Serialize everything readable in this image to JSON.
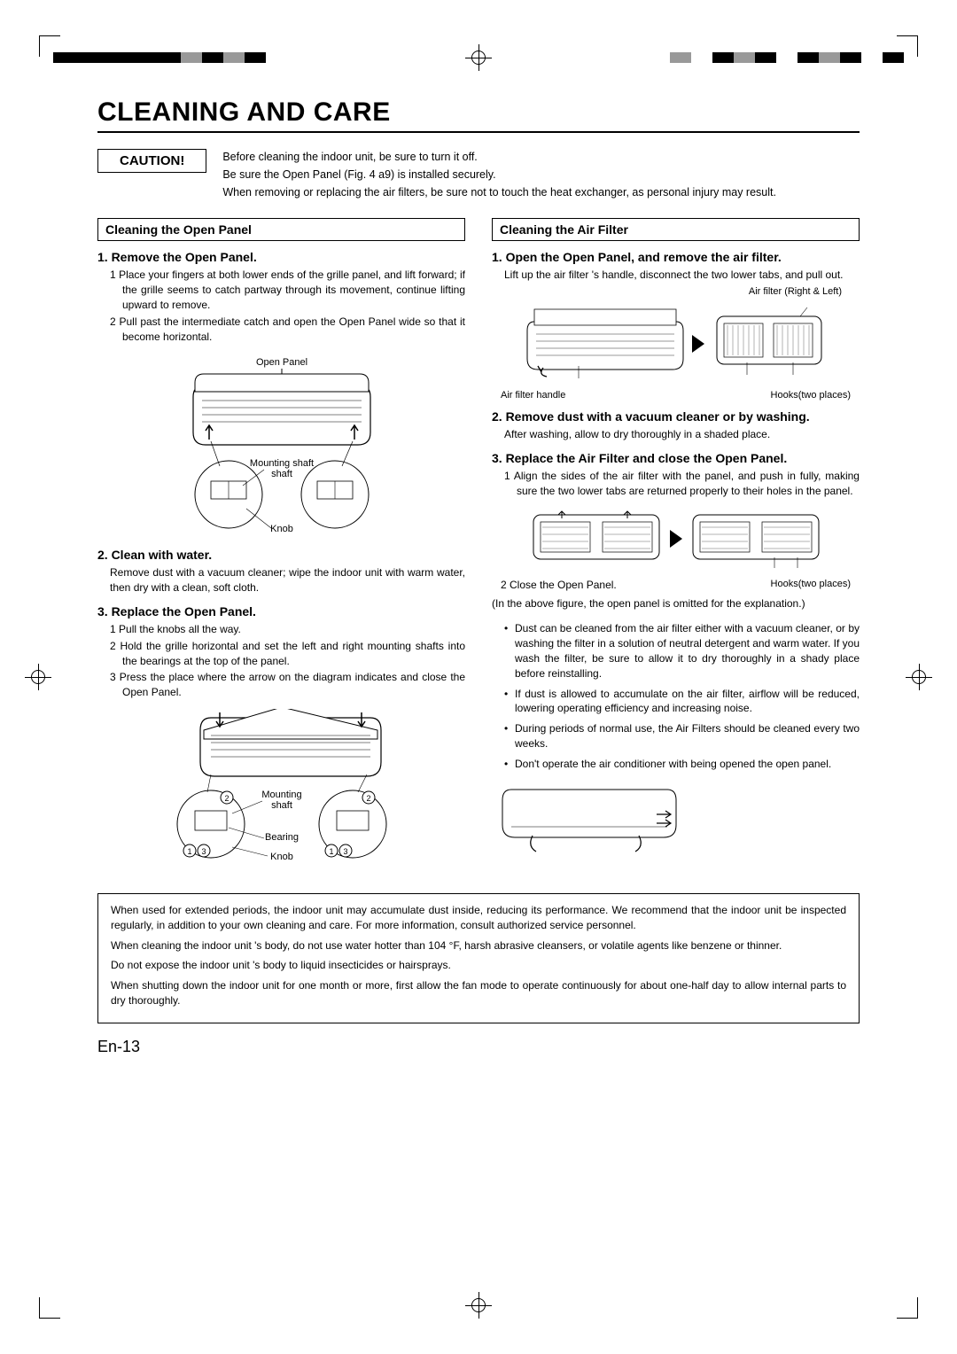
{
  "title": "CLEANING AND CARE",
  "caution": {
    "label": "CAUTION!",
    "lines": [
      "Before cleaning the indoor unit, be sure to turn it off.",
      "Be sure the Open Panel (Fig. 4 a9) is installed securely.",
      "When removing or replacing the air filters, be sure not to touch the heat exchanger, as personal injury may result."
    ]
  },
  "left": {
    "header": "Cleaning the Open Panel",
    "step1": {
      "title": "1. Remove the Open Panel.",
      "items": [
        "Place your fingers at both lower ends of the grille panel, and lift forward; if the grille seems to catch partway through its movement, continue lifting upward to remove.",
        "Pull past the intermediate catch and open the Open Panel wide so that it become horizontal."
      ],
      "diagram_labels": {
        "top": "Open Panel",
        "mid": "Mounting shaft",
        "bot": "Knob"
      }
    },
    "step2": {
      "title": "2. Clean with water.",
      "text": "Remove dust with a vacuum cleaner; wipe the indoor unit with warm water, then dry with a clean, soft cloth."
    },
    "step3": {
      "title": "3. Replace the Open Panel.",
      "items": [
        "Pull the knobs all the way.",
        "Hold the grille horizontal and set the left and right mounting shafts into the bearings at the top of the panel.",
        "Press the place where the arrow on the diagram indicates and close the Open Panel."
      ],
      "diagram_labels": {
        "a": "Mounting shaft",
        "b": "Bearing",
        "c": "Knob"
      }
    }
  },
  "right": {
    "header": "Cleaning the Air Filter",
    "step1": {
      "title": "1. Open the Open Panel, and remove the air filter.",
      "text": "Lift up the air filter 's handle, disconnect the two lower tabs, and pull out.",
      "label_top": "Air filter (Right & Left)",
      "label_left": "Air filter handle",
      "label_right": "Hooks(two places)"
    },
    "step2": {
      "title": "2. Remove dust with a vacuum cleaner or by washing.",
      "text": "After washing, allow to dry thoroughly in a shaded place."
    },
    "step3": {
      "title": "3. Replace the Air Filter and close the Open Panel.",
      "items": [
        "Align the sides of the air filter with the panel, and push in fully, making sure the two lower tabs are returned properly to their holes in the panel."
      ],
      "close_item": "Close the Open Panel.",
      "hooks_label": "Hooks(two places)",
      "explain": "(In the above figure, the open panel is omitted for the explanation.)"
    },
    "bullets": [
      "Dust can be cleaned from the air filter either with a vacuum cleaner, or by washing the filter in a solution of neutral detergent and warm water. If you wash the filter, be sure to allow it to dry thoroughly in a shady place before reinstalling.",
      "If dust is allowed to accumulate on the air filter, airflow will be reduced, lowering operating efficiency and increasing noise.",
      "During periods of normal use, the Air Filters should be cleaned every two weeks.",
      "Don't operate the air conditioner with being opened the open panel."
    ]
  },
  "bottom_box": [
    "When used for extended periods, the indoor unit may accumulate dust inside, reducing its performance. We recommend that the indoor unit be inspected regularly, in addition to your own cleaning and care. For more information, consult authorized service personnel.",
    "When cleaning the indoor unit 's body, do not use water hotter than 104 °F, harsh abrasive cleansers, or volatile agents like benzene or thinner.",
    "Do not expose the indoor unit 's body to liquid insecticides or hairsprays.",
    "When shutting down the indoor unit for one month or more, first allow the fan mode to operate continuously for about one-half day to allow internal parts to dry thoroughly."
  ],
  "page_number": "En-13",
  "crop_pattern_left": [
    "#000",
    "#000",
    "#000",
    "#000",
    "#000",
    "#000",
    "#999",
    "#000",
    "#999",
    "#000",
    "#fff"
  ],
  "crop_pattern_right": [
    "#999",
    "#fff",
    "#000",
    "#999",
    "#000",
    "#fff",
    "#000",
    "#999",
    "#000",
    "#fff",
    "#000"
  ]
}
